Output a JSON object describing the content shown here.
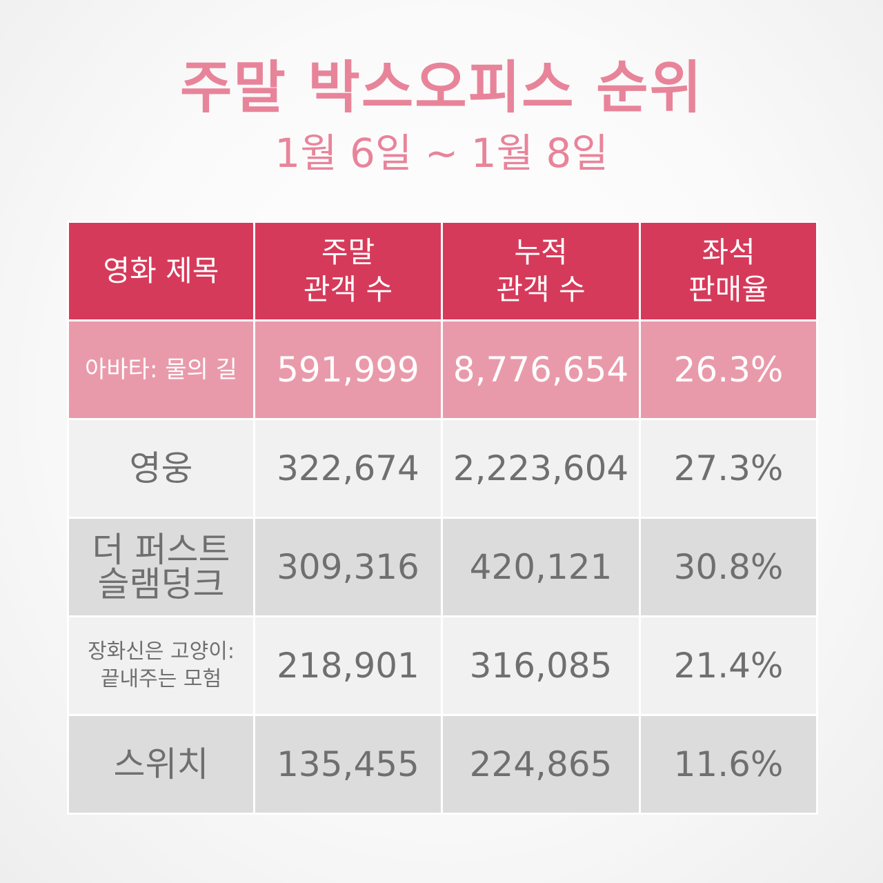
{
  "title": "주말 박스오피스 순위",
  "subtitle": "1월 6일 ~ 1월 8일",
  "colors": {
    "title": "#e8849a",
    "header_bg": "#d63a5a",
    "highlight_row_bg": "#e99aaa",
    "light_row_bg": "#f1f1f1",
    "dark_row_bg": "#dcdcdc"
  },
  "chart_data": {
    "type": "table",
    "title": "주말 박스오피스 순위",
    "subtitle": "1월 6일 ~ 1월 8일",
    "columns": [
      {
        "line1": "영화 제목",
        "line2": ""
      },
      {
        "line1": "주말",
        "line2": "관객 수"
      },
      {
        "line1": "누적",
        "line2": "관객 수"
      },
      {
        "line1": "좌석",
        "line2": "판매율"
      }
    ],
    "rows": [
      {
        "title_line1": "아바타: 물의 길",
        "title_line2": "",
        "weekend": "591,999",
        "total": "8,776,654",
        "seat_rate": "26.3%"
      },
      {
        "title_line1": "영웅",
        "title_line2": "",
        "weekend": "322,674",
        "total": "2,223,604",
        "seat_rate": "27.3%"
      },
      {
        "title_line1": "더 퍼스트",
        "title_line2": "슬램덩크",
        "weekend": "309,316",
        "total": "420,121",
        "seat_rate": "30.8%"
      },
      {
        "title_line1": "장화신은 고양이:",
        "title_line2": "끝내주는 모험",
        "weekend": "218,901",
        "total": "316,085",
        "seat_rate": "21.4%"
      },
      {
        "title_line1": "스위치",
        "title_line2": "",
        "weekend": "135,455",
        "total": "224,865",
        "seat_rate": "11.6%"
      }
    ]
  }
}
